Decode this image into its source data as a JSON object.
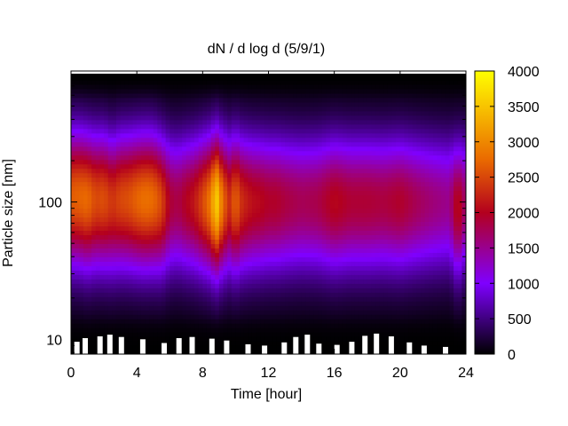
{
  "chart_data": {
    "type": "heatmap",
    "title": "dN / d log d (5/9/1)",
    "xlabel": "Time [hour]",
    "ylabel": "Particle size [nm]",
    "xlim": [
      0,
      24
    ],
    "x_ticks": [
      0,
      4,
      8,
      12,
      16,
      20,
      24
    ],
    "y_scale": "log",
    "ylim": [
      7.8,
      900
    ],
    "y_ticks": [
      10,
      100
    ],
    "colorbar": {
      "range": [
        0,
        4000
      ],
      "ticks": [
        0,
        500,
        1000,
        1500,
        2000,
        2500,
        3000,
        3500,
        4000
      ],
      "colormap": [
        {
          "value": 0,
          "color": "#000000"
        },
        {
          "value": 1000,
          "color": "#7f00ff"
        },
        {
          "value": 2000,
          "color": "#b3001e"
        },
        {
          "value": 2750,
          "color": "#ea6a00"
        },
        {
          "value": 3500,
          "color": "#f8c400"
        },
        {
          "value": 4000,
          "color": "#ffff00"
        }
      ]
    },
    "grid": false,
    "time_hours": [
      0,
      0.5,
      1,
      1.5,
      2,
      2.5,
      3,
      3.5,
      4,
      4.5,
      5,
      5.5,
      6,
      6.5,
      7,
      7.5,
      8,
      8.5,
      8.8,
      9.2,
      9.6,
      10,
      10.4,
      11,
      11.5,
      12,
      12.5,
      13,
      14,
      15,
      16,
      17,
      18,
      19,
      20,
      21,
      22,
      23,
      23.5,
      24
    ],
    "peak_concentration": [
      2650,
      2700,
      2750,
      2500,
      2550,
      2350,
      2500,
      2550,
      2700,
      2800,
      2750,
      2500,
      1900,
      1800,
      2000,
      2150,
      2500,
      2900,
      3700,
      2800,
      2300,
      2700,
      2300,
      2100,
      2050,
      1950,
      1950,
      1850,
      1750,
      1800,
      2050,
      1900,
      1900,
      1850,
      1950,
      1750,
      1600,
      1500,
      2150,
      1600
    ],
    "peak_diameter_nm": [
      110,
      110,
      105,
      105,
      105,
      100,
      105,
      105,
      105,
      105,
      105,
      100,
      100,
      100,
      100,
      100,
      100,
      100,
      100,
      100,
      100,
      100,
      100,
      100,
      100,
      100,
      100,
      100,
      100,
      100,
      100,
      100,
      100,
      100,
      100,
      100,
      100,
      100,
      90,
      100
    ]
  }
}
